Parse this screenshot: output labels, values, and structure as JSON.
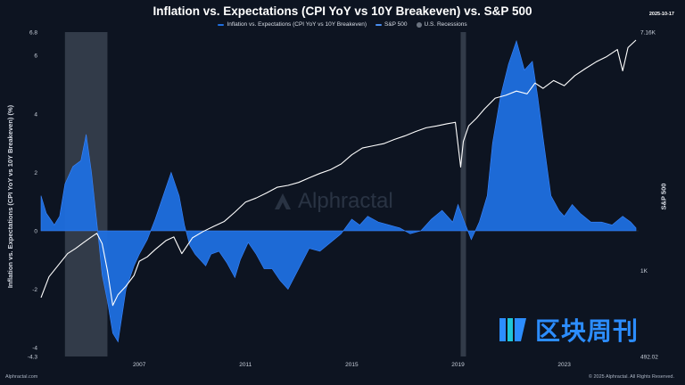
{
  "title": "Inflation vs. Expectations (CPI YoY vs 10Y Breakeven) vs. S&P 500",
  "date_stamp": "2025-10-17",
  "legend": [
    {
      "label": "Inflation vs. Expectations (CPI YoY vs 10Y Breakeven)",
      "color": "#1f6fe0"
    },
    {
      "label": "S&P 500",
      "color": "#4a8ef0"
    },
    {
      "label": "U.S. Recessions",
      "color": "#6b7380"
    }
  ],
  "watermark": "Alphractal",
  "footer_left": "Alphractal.com",
  "footer_right": "© 2025 Alphractal. All Rights Reserved.",
  "logo_text": "区块周刊",
  "colors": {
    "background": "#0d1421",
    "area": "#1f6fe0",
    "spx": "#ffffff",
    "recession": "#3a4250"
  },
  "chart_data": {
    "type": "area",
    "ylabel_left": "Inflation vs. Expectations (CPI YoY vs 10Y Breakeven) (%)",
    "ylabel_right": "S&P 500",
    "ylim_left": [
      -4.3,
      6.8
    ],
    "y_left_ticks": [
      {
        "value": 6.8,
        "label": "6.8"
      },
      {
        "value": 6,
        "label": "6"
      },
      {
        "value": 4,
        "label": "4"
      },
      {
        "value": 2,
        "label": "2"
      },
      {
        "value": 0,
        "label": "0"
      },
      {
        "value": -2,
        "label": "-2"
      },
      {
        "value": -4,
        "label": "-4"
      },
      {
        "value": -4.3,
        "label": "-4.3"
      }
    ],
    "ylim_right": [
      492.02,
      7160
    ],
    "y_right_scale": "log",
    "y_right_ticks": [
      {
        "value": 7160,
        "label": "7.16K"
      },
      {
        "value": 1000,
        "label": "1K"
      },
      {
        "value": 492.02,
        "label": "492.02"
      }
    ],
    "xlim": [
      2003.3,
      2025.8
    ],
    "x_ticks": [
      2007,
      2011,
      2015,
      2019,
      2023
    ],
    "recessions": [
      [
        2004.2,
        2005.8
      ],
      [
        2019.1,
        2019.3
      ]
    ],
    "series": [
      {
        "name": "Inflation vs. Expectations (CPI YoY vs 10Y Breakeven)",
        "x": [
          2003.3,
          2003.5,
          2003.8,
          2004.0,
          2004.2,
          2004.5,
          2004.8,
          2005.0,
          2005.2,
          2005.4,
          2005.6,
          2005.8,
          2006.0,
          2006.2,
          2006.5,
          2006.8,
          2007.0,
          2007.3,
          2007.6,
          2007.9,
          2008.2,
          2008.5,
          2008.7,
          2008.9,
          2009.1,
          2009.3,
          2009.5,
          2009.7,
          2010.0,
          2010.3,
          2010.6,
          2010.8,
          2011.1,
          2011.4,
          2011.7,
          2012.0,
          2012.3,
          2012.6,
          2013.0,
          2013.4,
          2013.8,
          2014.2,
          2014.6,
          2015.0,
          2015.3,
          2015.6,
          2016.0,
          2016.4,
          2016.8,
          2017.2,
          2017.6,
          2018.0,
          2018.4,
          2018.8,
          2019.0,
          2019.2,
          2019.5,
          2019.8,
          2020.1,
          2020.3,
          2020.6,
          2020.9,
          2021.2,
          2021.5,
          2021.8,
          2022.0,
          2022.2,
          2022.5,
          2022.8,
          2023.0,
          2023.3,
          2023.6,
          2024.0,
          2024.4,
          2024.8,
          2025.2,
          2025.5,
          2025.7
        ],
        "values": [
          1.2,
          0.6,
          0.2,
          0.5,
          1.6,
          2.2,
          2.4,
          3.3,
          2.0,
          0.3,
          -1.5,
          -2.4,
          -3.5,
          -3.8,
          -2.0,
          -1.2,
          -0.8,
          -0.3,
          0.4,
          1.2,
          2.0,
          1.2,
          0.2,
          -0.5,
          -0.8,
          -1.0,
          -1.2,
          -0.8,
          -0.7,
          -1.1,
          -1.6,
          -1.0,
          -0.4,
          -0.8,
          -1.3,
          -1.3,
          -1.7,
          -2.0,
          -1.3,
          -0.6,
          -0.7,
          -0.4,
          -0.1,
          0.4,
          0.2,
          0.5,
          0.3,
          0.2,
          0.1,
          -0.1,
          0.0,
          0.4,
          0.7,
          0.3,
          0.9,
          0.4,
          -0.3,
          0.3,
          1.2,
          3.0,
          4.6,
          5.7,
          6.5,
          5.5,
          5.8,
          4.6,
          3.2,
          1.2,
          0.7,
          0.5,
          0.9,
          0.6,
          0.3,
          0.3,
          0.2,
          0.5,
          0.3,
          0.1
        ]
      },
      {
        "name": "S&P 500",
        "x": [
          2003.3,
          2003.6,
          2004.0,
          2004.3,
          2004.6,
          2004.9,
          2005.2,
          2005.4,
          2005.6,
          2005.8,
          2006.0,
          2006.2,
          2006.5,
          2006.8,
          2007.0,
          2007.3,
          2007.6,
          2008.0,
          2008.3,
          2008.6,
          2009.0,
          2009.4,
          2009.8,
          2010.2,
          2010.6,
          2011.0,
          2011.4,
          2011.8,
          2012.2,
          2012.6,
          2013.0,
          2013.4,
          2013.8,
          2014.2,
          2014.6,
          2015.0,
          2015.4,
          2015.8,
          2016.2,
          2016.6,
          2017.0,
          2017.4,
          2017.8,
          2018.2,
          2018.6,
          2018.9,
          2019.1,
          2019.2,
          2019.4,
          2019.7,
          2020.0,
          2020.4,
          2020.8,
          2021.2,
          2021.6,
          2021.9,
          2022.2,
          2022.6,
          2023.0,
          2023.4,
          2023.8,
          2024.2,
          2024.6,
          2025.0,
          2025.2,
          2025.4,
          2025.7
        ],
        "values": [
          800,
          950,
          1060,
          1150,
          1200,
          1260,
          1320,
          1360,
          1250,
          1000,
          750,
          820,
          880,
          960,
          1080,
          1120,
          1190,
          1280,
          1320,
          1150,
          1310,
          1380,
          1440,
          1500,
          1620,
          1760,
          1820,
          1900,
          1990,
          2020,
          2070,
          2150,
          2230,
          2300,
          2410,
          2600,
          2750,
          2800,
          2850,
          2950,
          3040,
          3150,
          3250,
          3300,
          3360,
          3400,
          2350,
          2900,
          3300,
          3520,
          3800,
          4150,
          4250,
          4400,
          4300,
          4700,
          4500,
          4800,
          4600,
          5000,
          5300,
          5600,
          5850,
          6200,
          5200,
          6300,
          6700
        ]
      }
    ]
  }
}
